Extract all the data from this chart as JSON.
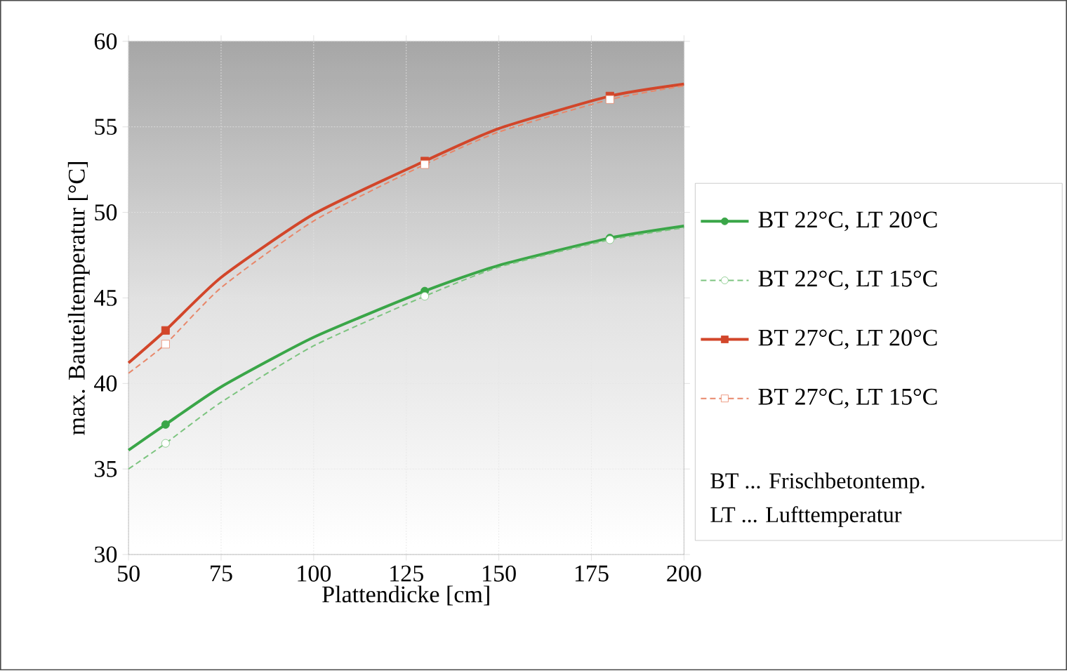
{
  "chart_data": {
    "type": "line",
    "xlabel": "Plattendicke [cm]",
    "ylabel": "max. Bauteiltemperatur [°C]",
    "xlim": [
      50,
      200
    ],
    "xticks": [
      50,
      75,
      100,
      125,
      150,
      175,
      200
    ],
    "ylim": [
      30,
      60
    ],
    "yticks": [
      30,
      35,
      40,
      45,
      50,
      55,
      60
    ],
    "grid": true,
    "legend": "right",
    "series": [
      {
        "name": "BT 22°C, LT 20°C",
        "type": "scatter",
        "color": "#3aa648",
        "marker": "circle",
        "line_style": "solid",
        "x": [
          60,
          130,
          180
        ],
        "values": [
          37.6,
          45.4,
          48.5
        ]
      },
      {
        "name": "BT 22°C, LT  15°C",
        "type": "scatter",
        "color": "#7cc47f",
        "marker": "circle",
        "line_style": "dashed",
        "x": [
          60,
          130,
          180
        ],
        "values": [
          36.5,
          45.1,
          48.4
        ]
      },
      {
        "name": "BT 27°C, LT 20°C",
        "type": "scatter",
        "color": "#d2462a",
        "marker": "square",
        "line_style": "solid",
        "x": [
          60,
          130,
          180
        ],
        "values": [
          43.1,
          53.0,
          56.8
        ]
      },
      {
        "name": "BT 27°C, LT 15°C",
        "type": "scatter",
        "color": "#e8876a",
        "marker": "square",
        "line_style": "dashed",
        "x": [
          60,
          130,
          180
        ],
        "values": [
          42.3,
          52.8,
          56.6
        ]
      },
      {
        "color": "#3aa648",
        "line_style": "solid",
        "x": [
          50,
          60,
          75,
          100,
          130,
          150,
          180,
          200
        ],
        "values": [
          36.1,
          37.6,
          39.8,
          42.7,
          45.4,
          46.9,
          48.5,
          49.2
        ]
      },
      {
        "color": "#7cc47f",
        "line_style": "dashed",
        "x": [
          50,
          60,
          75,
          100,
          130,
          150,
          180,
          200
        ],
        "values": [
          35.0,
          36.5,
          38.9,
          42.2,
          45.1,
          46.8,
          48.4,
          49.1
        ]
      },
      {
        "color": "#d2462a",
        "line_style": "solid",
        "x": [
          50,
          60,
          75,
          100,
          130,
          150,
          180,
          200
        ],
        "values": [
          41.2,
          43.1,
          46.2,
          49.9,
          53.0,
          54.9,
          56.8,
          57.5
        ]
      },
      {
        "color": "#e8876a",
        "line_style": "dashed",
        "x": [
          50,
          60,
          75,
          100,
          130,
          150,
          180,
          200
        ],
        "values": [
          40.6,
          42.3,
          45.6,
          49.5,
          52.8,
          54.7,
          56.6,
          57.4
        ]
      }
    ],
    "annotations": [
      "BT ... Frischbetontemp.",
      "LT ... Lufttemperatur"
    ]
  }
}
